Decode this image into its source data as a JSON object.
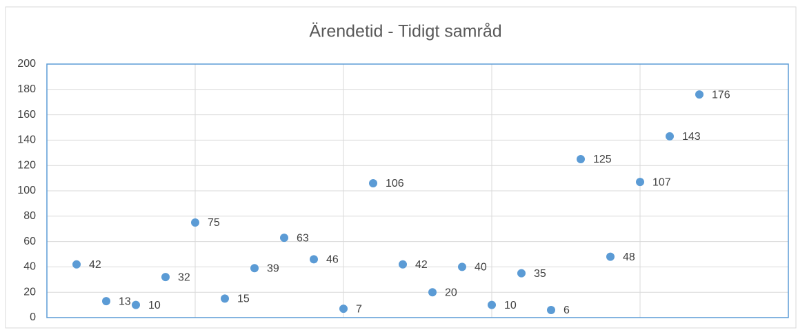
{
  "chart_data": {
    "type": "scatter",
    "title": "Ärendetid - Tidigt samråd",
    "x": [
      1,
      2,
      3,
      4,
      5,
      6,
      7,
      8,
      9,
      10,
      11,
      12,
      13,
      14,
      15,
      16,
      17,
      18,
      19,
      20,
      21,
      22
    ],
    "values": [
      42,
      13,
      10,
      32,
      75,
      15,
      39,
      63,
      46,
      7,
      106,
      42,
      20,
      40,
      10,
      35,
      6,
      125,
      48,
      107,
      143,
      176
    ],
    "color": "#5b9bd5",
    "xlim": [
      0,
      25
    ],
    "xticks": [
      0,
      5,
      10,
      15,
      20,
      25
    ],
    "ylim": [
      0,
      200
    ],
    "yticks": [
      0,
      20,
      40,
      60,
      80,
      100,
      120,
      140,
      160,
      180,
      200
    ],
    "grid": true,
    "data_labels": true
  }
}
